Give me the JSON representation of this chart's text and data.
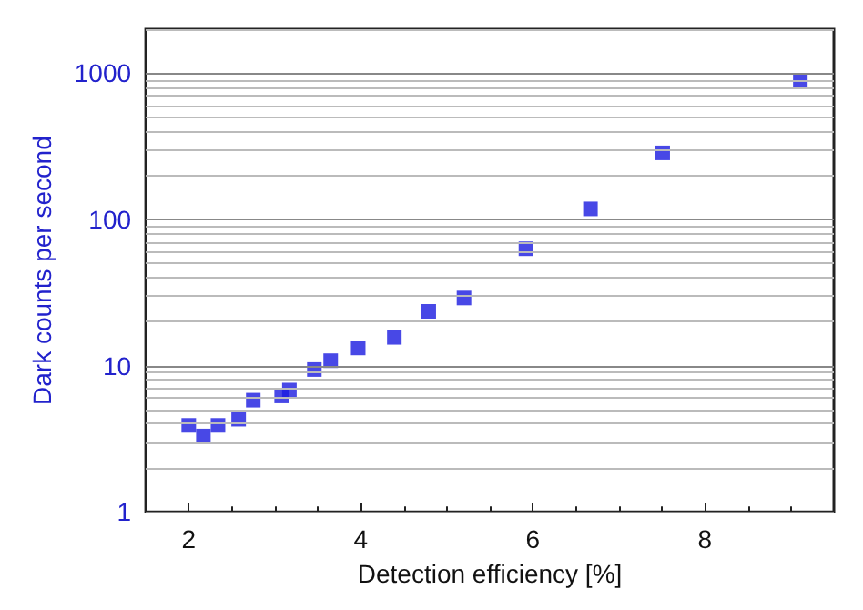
{
  "chart_data": {
    "type": "scatter",
    "xlabel": "Detection efficiency [%]",
    "ylabel": "Dark counts per second",
    "x": [
      2.0,
      2.17,
      2.34,
      2.58,
      2.75,
      3.08,
      3.17,
      3.46,
      3.65,
      3.97,
      4.39,
      4.79,
      5.2,
      5.92,
      6.67,
      7.51,
      9.11
    ],
    "series": [
      {
        "color": "#1a1ae0",
        "values": [
          3.9,
          3.3,
          3.9,
          4.3,
          5.8,
          6.2,
          6.8,
          9.4,
          10.8,
          13.2,
          15.6,
          23.5,
          29,
          63,
          118,
          285,
          890
        ]
      }
    ],
    "xlim": [
      1.5,
      9.5
    ],
    "xticks": [
      2,
      4,
      6,
      8
    ],
    "ylim": [
      1,
      2000
    ],
    "yticks": [
      1,
      10,
      100,
      1000
    ],
    "log": "y",
    "grid": "y",
    "marker": "square"
  }
}
